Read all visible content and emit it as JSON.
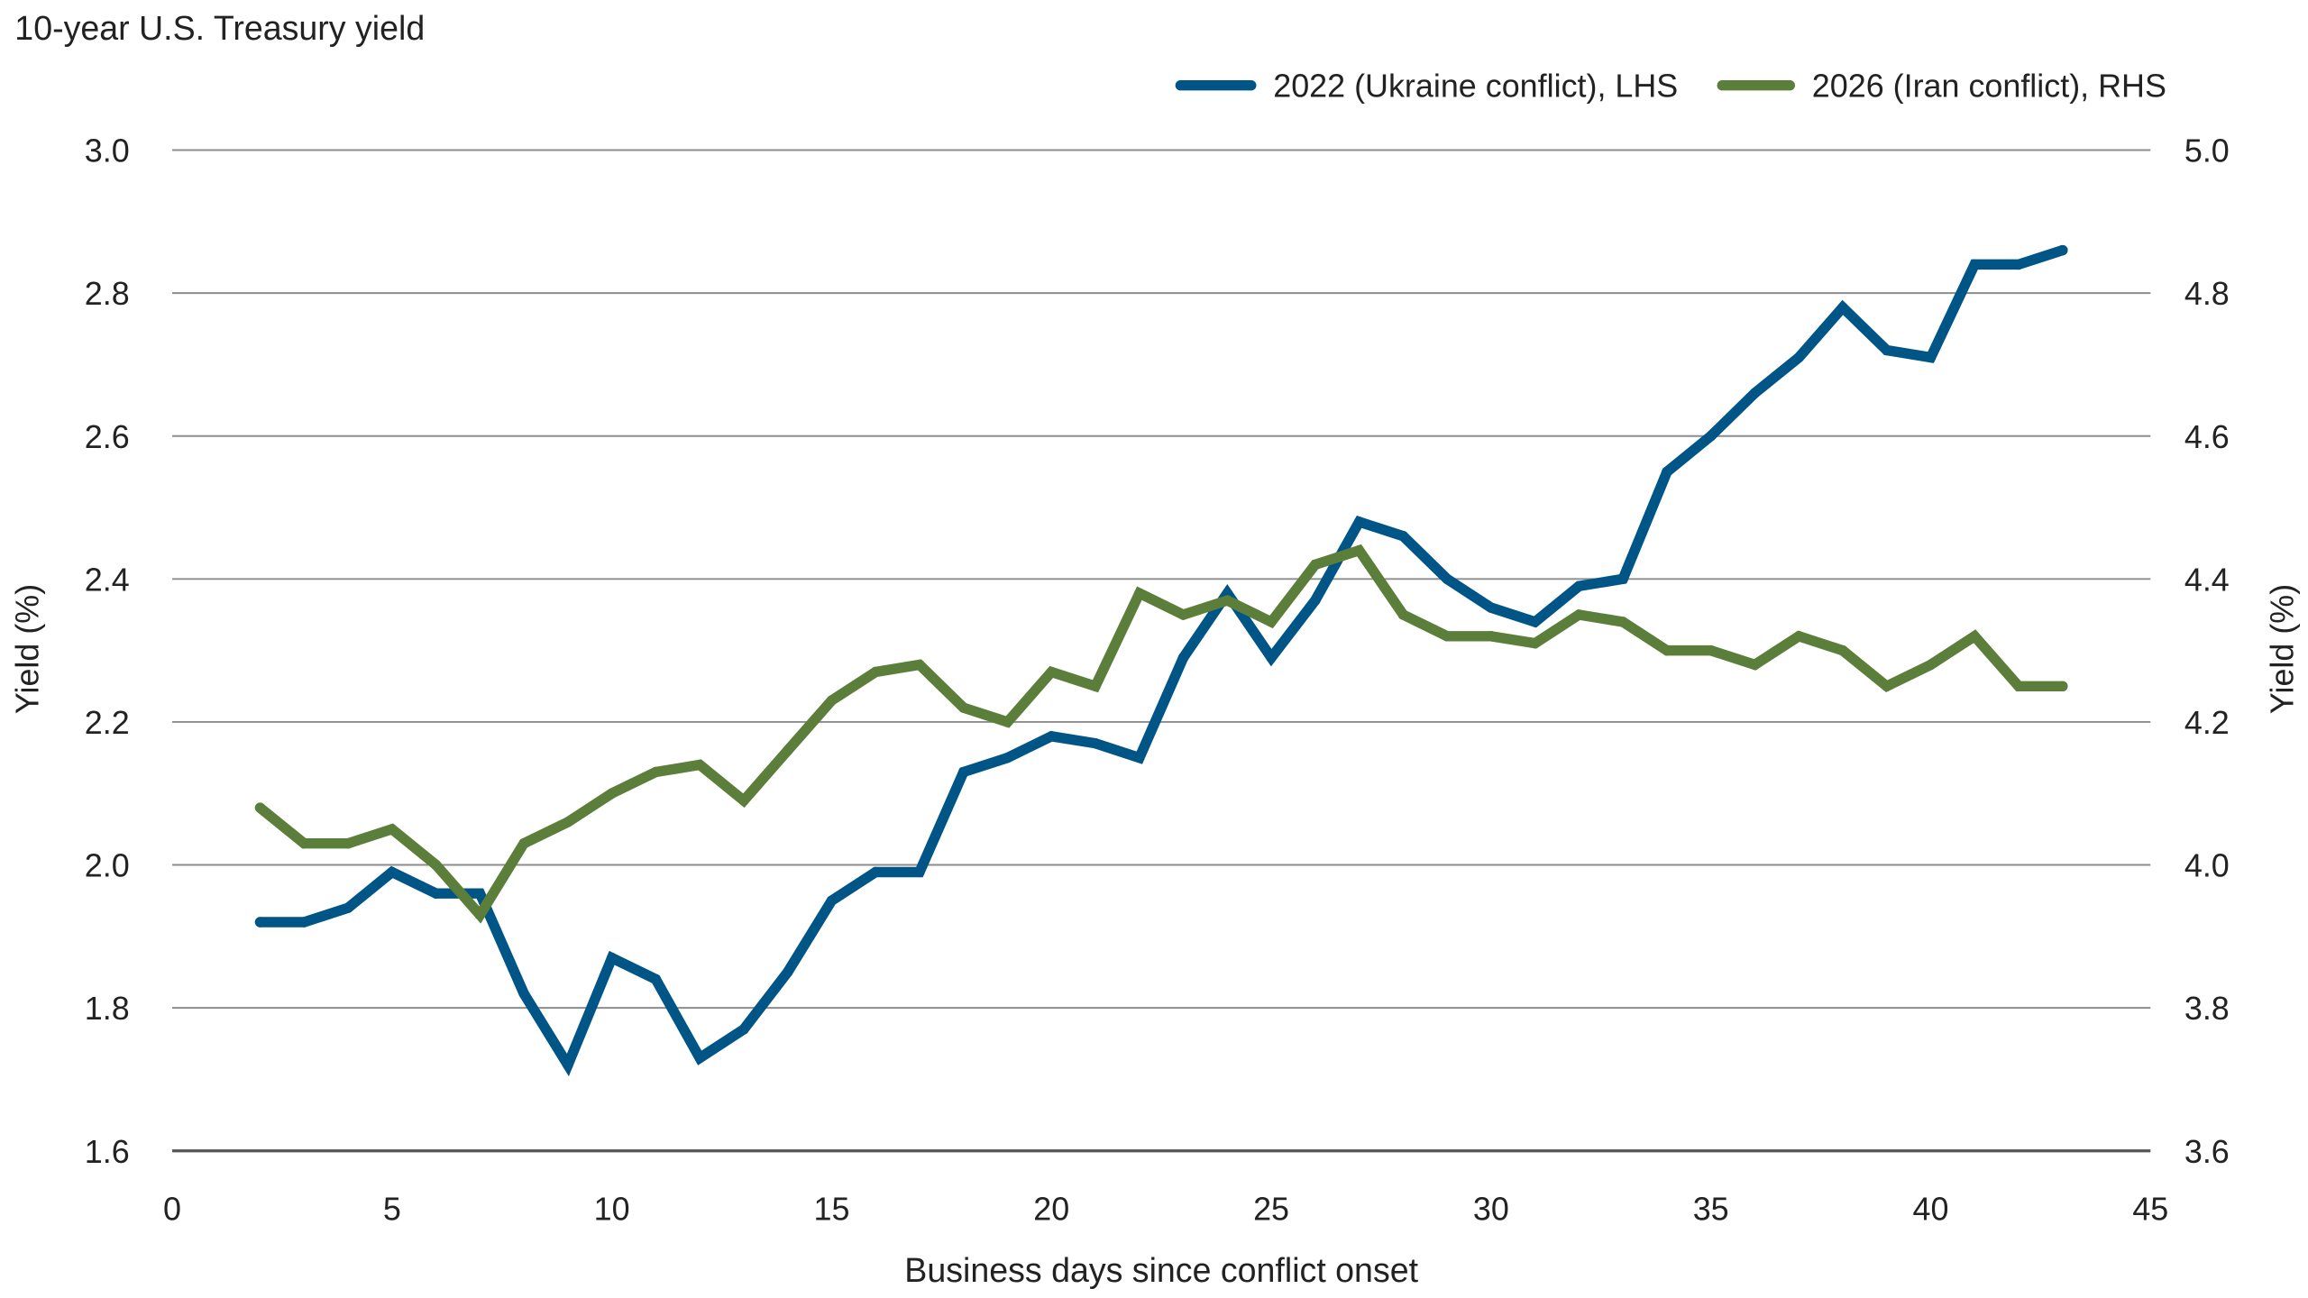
{
  "chart_data": {
    "type": "line",
    "title": "10-year U.S. Treasury yield",
    "xlabel": "Business days since conflict onset",
    "ylabel_left": "Yield (%)",
    "ylabel_right": "Yield (%)",
    "xlim": [
      0,
      45
    ],
    "ylim_left": [
      1.6,
      3.0
    ],
    "ylim_right": [
      3.6,
      5.0
    ],
    "x_ticks": [
      "0",
      "5",
      "10",
      "15",
      "20",
      "25",
      "30",
      "35",
      "40",
      "45"
    ],
    "y_ticks_left": [
      "1.6",
      "1.8",
      "2.0",
      "2.2",
      "2.4",
      "2.6",
      "2.8",
      "3.0"
    ],
    "y_ticks_right": [
      "3.6",
      "3.8",
      "4.0",
      "4.2",
      "4.4",
      "4.6",
      "4.8",
      "5.0"
    ],
    "grid": "horizontal",
    "legend_position": "top-right",
    "x": [
      2,
      3,
      4,
      5,
      6,
      7,
      8,
      9,
      10,
      11,
      12,
      13,
      14,
      15,
      16,
      17,
      18,
      19,
      20,
      21,
      22,
      23,
      24,
      25,
      26,
      27,
      28,
      29,
      30,
      31,
      32,
      33,
      34,
      35,
      36,
      37,
      38,
      39,
      40,
      41,
      42,
      43
    ],
    "series": [
      {
        "name": "2022 (Ukraine conflict), LHS",
        "axis": "left",
        "color": "#005587",
        "values": [
          1.92,
          1.92,
          1.94,
          1.99,
          1.96,
          1.96,
          1.82,
          1.72,
          1.87,
          1.84,
          1.73,
          1.77,
          1.85,
          1.95,
          1.99,
          1.99,
          2.13,
          2.15,
          2.18,
          2.17,
          2.15,
          2.29,
          2.38,
          2.29,
          2.37,
          2.48,
          2.46,
          2.4,
          2.36,
          2.34,
          2.39,
          2.4,
          2.55,
          2.6,
          2.66,
          2.71,
          2.78,
          2.72,
          2.71,
          2.84,
          2.84,
          2.86
        ]
      },
      {
        "name": "2026 (Iran conflict), RHS",
        "axis": "right",
        "color": "#5b7f3a",
        "values": [
          4.08,
          4.03,
          4.03,
          4.05,
          4.0,
          3.93,
          4.03,
          4.06,
          4.1,
          4.13,
          4.14,
          4.09,
          4.16,
          4.23,
          4.27,
          4.28,
          4.22,
          4.2,
          4.27,
          4.25,
          4.38,
          4.35,
          4.37,
          4.34,
          4.42,
          4.44,
          4.35,
          4.32,
          4.32,
          4.31,
          4.35,
          4.34,
          4.3,
          4.3,
          4.28,
          4.32,
          4.3,
          4.25,
          4.28,
          4.32,
          4.25,
          4.25
        ]
      }
    ]
  }
}
